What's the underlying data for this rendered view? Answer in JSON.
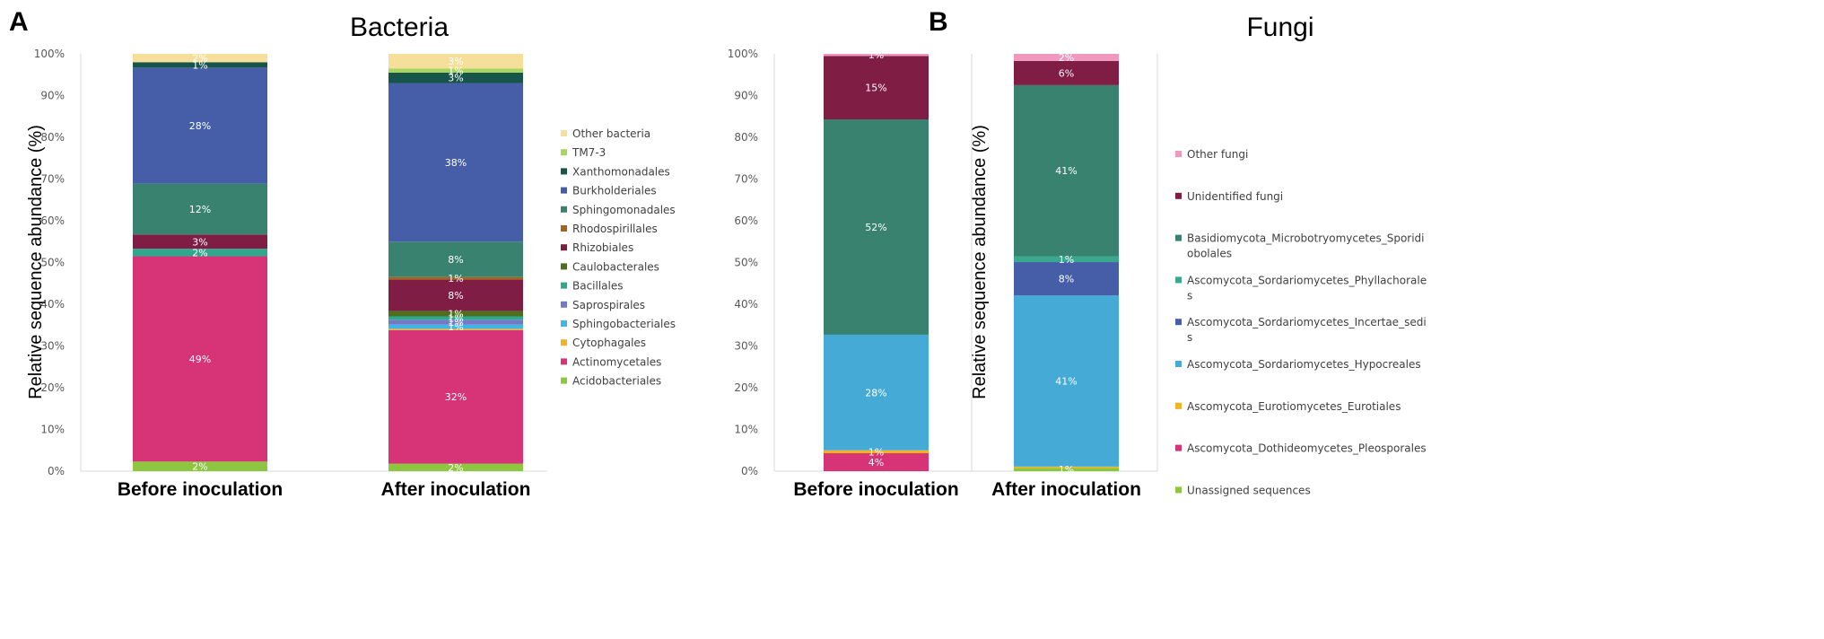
{
  "chart_data": [
    {
      "type": "bar",
      "stacked": true,
      "panel": "A",
      "title": "Bacteria",
      "ylabel": "Relative sequence abundance (%)",
      "xlabel": "",
      "ylim": [
        0,
        100
      ],
      "yticks": [
        "0%",
        "10%",
        "20%",
        "30%",
        "40%",
        "50%",
        "60%",
        "70%",
        "80%",
        "90%",
        "100%"
      ],
      "categories": [
        "Before inoculation",
        "After inoculation"
      ],
      "legend_position": "right",
      "series": [
        {
          "name": "Acidobacteriales",
          "color": "#8dc63f",
          "values": [
            2.3,
            1.8
          ],
          "labels": [
            "2%",
            "2%"
          ]
        },
        {
          "name": "Actinomycetales",
          "color": "#d63477",
          "values": [
            49.2,
            32.0
          ],
          "labels": [
            "49%",
            "32%"
          ]
        },
        {
          "name": "Cytophagales",
          "color": "#f4b223",
          "values": [
            0,
            0.3
          ],
          "labels": [
            "",
            ""
          ]
        },
        {
          "name": "Sphingobacteriales",
          "color": "#41b6e6",
          "values": [
            0,
            1.0
          ],
          "labels": [
            "",
            "1%"
          ]
        },
        {
          "name": "Saprospirales",
          "color": "#6f7bc4",
          "values": [
            0,
            1.2
          ],
          "labels": [
            "",
            "1%"
          ]
        },
        {
          "name": "Bacillales",
          "color": "#2fa88e",
          "values": [
            1.8,
            0.8
          ],
          "labels": [
            "2%",
            "1%"
          ]
        },
        {
          "name": "Caulobacterales",
          "color": "#4e6e1e",
          "values": [
            0,
            1.3
          ],
          "labels": [
            "",
            "1%"
          ]
        },
        {
          "name": "Rhizobiales",
          "color": "#801d45",
          "values": [
            3.4,
            7.5
          ],
          "labels": [
            "3%",
            "8%"
          ]
        },
        {
          "name": "Rhodospirillales",
          "color": "#a5641c",
          "values": [
            0,
            0.6
          ],
          "labels": [
            "",
            "1%"
          ]
        },
        {
          "name": "Sphingomonadales",
          "color": "#3a8270",
          "values": [
            12.2,
            8.5
          ],
          "labels": [
            "12%",
            "8%"
          ]
        },
        {
          "name": "Burkholderiales",
          "color": "#465ea7",
          "values": [
            27.8,
            38.0
          ],
          "labels": [
            "28%",
            "38%"
          ]
        },
        {
          "name": "Xanthomonadales",
          "color": "#17544a",
          "values": [
            1.3,
            2.5
          ],
          "labels": [
            "1%",
            "3%"
          ]
        },
        {
          "name": "TM7-3",
          "color": "#a8d55e",
          "values": [
            0,
            1.0
          ],
          "labels": [
            "",
            "1%"
          ]
        },
        {
          "name": "Other bacteria",
          "color": "#f5df9a",
          "values": [
            2.0,
            3.5
          ],
          "labels": [
            "2%",
            "3%"
          ]
        }
      ]
    },
    {
      "type": "bar",
      "stacked": true,
      "panel": "B",
      "title": "Fungi",
      "ylabel": "Relative sequence abundance (%)",
      "xlabel": "",
      "ylim": [
        0,
        100
      ],
      "yticks": [
        "0%",
        "10%",
        "20%",
        "30%",
        "40%",
        "50%",
        "60%",
        "70%",
        "80%",
        "90%",
        "100%"
      ],
      "categories": [
        "Before inoculation",
        "After inoculation"
      ],
      "legend_position": "right",
      "series": [
        {
          "name": "Unassigned sequences",
          "color": "#8dc63f",
          "values": [
            0,
            0.8
          ],
          "labels": [
            "",
            "1%"
          ]
        },
        {
          "name": "Ascomycota_Dothideomycetes_Pleosporales",
          "color": "#d63477",
          "values": [
            4.3,
            0
          ],
          "labels": [
            "4%",
            ""
          ]
        },
        {
          "name": "Ascomycota_Eurotiomycetes_Eurotiales",
          "color": "#f4b223",
          "values": [
            0.7,
            0.3
          ],
          "labels": [
            "1%",
            ""
          ]
        },
        {
          "name": "Ascomycota_Sordariomycetes_Hypocreales",
          "color": "#45aad6",
          "values": [
            27.7,
            41.0
          ],
          "labels": [
            "28%",
            "41%"
          ]
        },
        {
          "name": "Ascomycota_Sordariomycetes_Incertae_sedis",
          "color": "#465ea7",
          "values": [
            0,
            8.0
          ],
          "labels": [
            "",
            "8%"
          ]
        },
        {
          "name": "Ascomycota_Sordariomycetes_Phyllachorales",
          "color": "#3aa88e",
          "values": [
            0,
            1.4
          ],
          "labels": [
            "",
            "1%"
          ]
        },
        {
          "name": "Basidiomycota_Microbotryomycetes_Sporidiobolales",
          "color": "#3a8270",
          "values": [
            51.6,
            41.0
          ],
          "labels": [
            "52%",
            "41%"
          ]
        },
        {
          "name": "Unidentified fungi",
          "color": "#801d45",
          "values": [
            15.2,
            5.8
          ],
          "labels": [
            "15%",
            "6%"
          ]
        },
        {
          "name": "Other fungi",
          "color": "#ef99c0",
          "values": [
            0.5,
            1.7
          ],
          "labels": [
            "1%",
            "2%"
          ]
        }
      ]
    }
  ]
}
